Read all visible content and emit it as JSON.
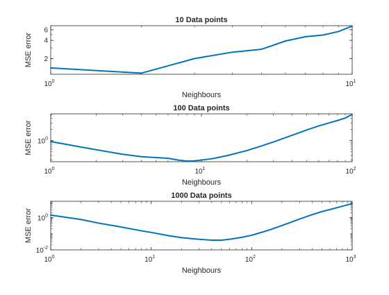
{
  "chart_data": [
    {
      "type": "line",
      "title": "10 Data points",
      "xlabel": "Neighbours",
      "ylabel": "MSE error",
      "xscale": "log",
      "yscale": "log",
      "xlim": [
        1,
        10
      ],
      "ylim": [
        1.1,
        7
      ],
      "xticks": [
        {
          "value": 1,
          "base": "10",
          "exp": "0"
        },
        {
          "value": 10,
          "base": "10",
          "exp": "1"
        }
      ],
      "yticks": [
        {
          "value": 2,
          "label": "2"
        },
        {
          "value": 4,
          "label": "4"
        },
        {
          "value": 6,
          "label": "6"
        }
      ],
      "line_color": "#0072BD",
      "series": [
        {
          "x": [
            1,
            2,
            3,
            4,
            5,
            6,
            7,
            8,
            9,
            10
          ],
          "y": [
            1.4,
            1.15,
            2.0,
            2.55,
            2.85,
            3.9,
            4.6,
            4.9,
            5.6,
            6.9
          ]
        }
      ]
    },
    {
      "type": "line",
      "title": "100 Data points",
      "xlabel": "Neighbours",
      "ylabel": "MSE error",
      "xscale": "log",
      "yscale": "log",
      "xlim": [
        1,
        100
      ],
      "ylim": [
        0.27,
        5.3
      ],
      "xticks": [
        {
          "value": 1,
          "base": "10",
          "exp": "0"
        },
        {
          "value": 10,
          "base": "10",
          "exp": "1"
        },
        {
          "value": 100,
          "base": "10",
          "exp": "2"
        }
      ],
      "yticks": [
        {
          "value": 1,
          "base": "10",
          "exp": "0"
        }
      ],
      "line_color": "#0072BD",
      "series": [
        {
          "x": [
            1,
            1.5,
            2,
            3,
            4,
            5,
            6,
            7,
            8,
            9,
            10,
            12,
            15,
            20,
            25,
            30,
            40,
            50,
            60,
            70,
            80,
            90,
            100
          ],
          "y": [
            0.95,
            0.7,
            0.57,
            0.43,
            0.37,
            0.35,
            0.335,
            0.3,
            0.28,
            0.285,
            0.3,
            0.33,
            0.4,
            0.54,
            0.72,
            0.92,
            1.4,
            1.95,
            2.5,
            3.0,
            3.5,
            4.1,
            5.1
          ]
        }
      ]
    },
    {
      "type": "line",
      "title": "1000 Data points",
      "xlabel": "Neighbours",
      "ylabel": "MSE error",
      "xscale": "log",
      "yscale": "log",
      "xlim": [
        1,
        1000
      ],
      "ylim": [
        0.01,
        10
      ],
      "xticks": [
        {
          "value": 1,
          "base": "10",
          "exp": "0"
        },
        {
          "value": 10,
          "base": "10",
          "exp": "1"
        },
        {
          "value": 100,
          "base": "10",
          "exp": "2"
        },
        {
          "value": 1000,
          "base": "10",
          "exp": "3"
        }
      ],
      "yticks": [
        {
          "value": 0.01,
          "base": "10",
          "exp": "-2"
        },
        {
          "value": 1,
          "base": "10",
          "exp": "0"
        }
      ],
      "line_color": "#0072BD",
      "series": [
        {
          "x": [
            1,
            2,
            3,
            5,
            8,
            10,
            15,
            20,
            30,
            40,
            50,
            60,
            80,
            100,
            150,
            200,
            300,
            400,
            500,
            700,
            1000
          ],
          "y": [
            1.4,
            0.75,
            0.45,
            0.26,
            0.15,
            0.12,
            0.075,
            0.057,
            0.045,
            0.04,
            0.04,
            0.045,
            0.06,
            0.08,
            0.17,
            0.32,
            0.8,
            1.5,
            2.3,
            4.0,
            7.2
          ]
        }
      ]
    }
  ]
}
